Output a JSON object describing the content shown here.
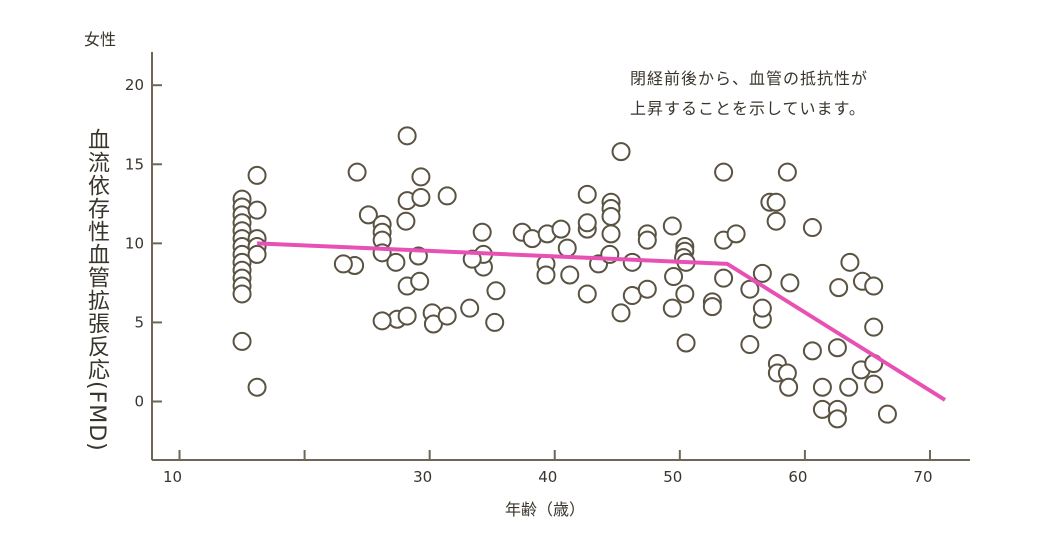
{
  "chart_data": {
    "type": "scatter",
    "group_label": "女性",
    "title": "",
    "xlabel": "年齢（歳）",
    "ylabel": "血流依存性血管拡張反応(FMD)",
    "xlim": [
      7.8,
      73.2
    ],
    "ylim": [
      -3.7,
      22.1
    ],
    "x_ticks": [
      10,
      20,
      30,
      40,
      50,
      60,
      70
    ],
    "x_tick_labels": [
      "10",
      "",
      "30",
      "40",
      "50",
      "60",
      "70"
    ],
    "y_ticks": [
      0,
      5,
      10,
      15,
      20
    ],
    "y_tick_labels": [
      "0",
      "5",
      "10",
      "15",
      "20"
    ],
    "grid": false,
    "annotation": [
      "閉経前後から、血管の抵抗性が",
      "上昇することを示しています。"
    ],
    "colors": {
      "axis": "#6e6656",
      "marker": "#5a5242",
      "trend": "#e851b4"
    },
    "trend_line": [
      [
        16.2,
        10.0
      ],
      [
        53.8,
        8.7
      ],
      [
        71.2,
        0.1
      ]
    ],
    "points": [
      [
        15.0,
        12.8
      ],
      [
        15.0,
        12.3
      ],
      [
        15.0,
        11.8
      ],
      [
        15.0,
        11.3
      ],
      [
        15.0,
        10.8
      ],
      [
        15.0,
        10.3
      ],
      [
        15.0,
        9.8
      ],
      [
        15.0,
        9.3
      ],
      [
        15.0,
        8.8
      ],
      [
        15.0,
        8.3
      ],
      [
        15.0,
        7.8
      ],
      [
        15.0,
        7.3
      ],
      [
        15.0,
        6.8
      ],
      [
        15.0,
        3.8
      ],
      [
        16.2,
        14.3
      ],
      [
        16.2,
        12.1
      ],
      [
        16.2,
        10.3
      ],
      [
        16.2,
        9.8
      ],
      [
        16.2,
        9.3
      ],
      [
        16.2,
        0.9
      ],
      [
        24.2,
        14.5
      ],
      [
        25.1,
        11.8
      ],
      [
        26.2,
        11.2
      ],
      [
        26.2,
        10.7
      ],
      [
        26.2,
        10.2
      ],
      [
        26.2,
        9.4
      ],
      [
        24.0,
        8.6
      ],
      [
        23.1,
        8.7
      ],
      [
        27.3,
        8.8
      ],
      [
        28.2,
        16.8
      ],
      [
        28.2,
        12.7
      ],
      [
        28.1,
        11.4
      ],
      [
        29.3,
        14.2
      ],
      [
        29.3,
        12.9
      ],
      [
        29.1,
        9.2
      ],
      [
        28.2,
        7.3
      ],
      [
        29.2,
        7.6
      ],
      [
        31.4,
        13.0
      ],
      [
        27.4,
        5.2
      ],
      [
        26.2,
        5.1
      ],
      [
        28.2,
        5.4
      ],
      [
        30.2,
        5.6
      ],
      [
        30.3,
        4.9
      ],
      [
        31.4,
        5.4
      ],
      [
        33.2,
        5.9
      ],
      [
        35.2,
        5.0
      ],
      [
        35.3,
        7.0
      ],
      [
        34.3,
        8.5
      ],
      [
        34.3,
        9.3
      ],
      [
        33.4,
        9.0
      ],
      [
        34.2,
        10.7
      ],
      [
        37.4,
        10.7
      ],
      [
        38.2,
        10.3
      ],
      [
        39.4,
        10.6
      ],
      [
        40.5,
        10.9
      ],
      [
        39.3,
        8.7
      ],
      [
        39.3,
        8.0
      ],
      [
        41.0,
        9.7
      ],
      [
        41.2,
        8.0
      ],
      [
        42.6,
        13.1
      ],
      [
        42.6,
        10.9
      ],
      [
        42.6,
        11.3
      ],
      [
        42.6,
        6.8
      ],
      [
        43.5,
        8.7
      ],
      [
        44.5,
        12.6
      ],
      [
        44.5,
        12.2
      ],
      [
        44.5,
        11.7
      ],
      [
        44.5,
        10.6
      ],
      [
        44.4,
        9.3
      ],
      [
        46.2,
        8.8
      ],
      [
        46.2,
        6.7
      ],
      [
        45.3,
        5.6
      ],
      [
        47.4,
        10.6
      ],
      [
        47.4,
        10.2
      ],
      [
        47.4,
        7.1
      ],
      [
        45.3,
        15.8
      ],
      [
        49.4,
        11.1
      ],
      [
        50.4,
        9.8
      ],
      [
        50.4,
        9.5
      ],
      [
        50.3,
        9.1
      ],
      [
        50.5,
        8.8
      ],
      [
        49.5,
        7.9
      ],
      [
        49.4,
        5.9
      ],
      [
        50.4,
        6.8
      ],
      [
        50.5,
        3.7
      ],
      [
        52.6,
        6.3
      ],
      [
        52.6,
        6.0
      ],
      [
        53.5,
        14.5
      ],
      [
        53.5,
        7.8
      ],
      [
        53.5,
        10.2
      ],
      [
        54.5,
        10.6
      ],
      [
        55.6,
        7.1
      ],
      [
        56.6,
        8.1
      ],
      [
        56.6,
        5.2
      ],
      [
        55.6,
        3.6
      ],
      [
        56.6,
        5.9
      ],
      [
        57.2,
        12.6
      ],
      [
        57.7,
        12.6
      ],
      [
        57.7,
        11.4
      ],
      [
        58.6,
        14.5
      ],
      [
        58.8,
        7.5
      ],
      [
        57.8,
        2.4
      ],
      [
        57.8,
        1.8
      ],
      [
        58.6,
        1.8
      ],
      [
        58.7,
        0.9
      ],
      [
        60.6,
        11.0
      ],
      [
        60.6,
        3.2
      ],
      [
        61.4,
        0.9
      ],
      [
        61.4,
        -0.5
      ],
      [
        62.6,
        -0.5
      ],
      [
        62.6,
        -1.1
      ],
      [
        63.6,
        8.8
      ],
      [
        62.7,
        7.2
      ],
      [
        62.6,
        3.4
      ],
      [
        63.5,
        0.9
      ],
      [
        64.5,
        2.0
      ],
      [
        64.6,
        7.6
      ],
      [
        65.5,
        7.3
      ],
      [
        65.5,
        4.7
      ],
      [
        65.5,
        2.4
      ],
      [
        65.5,
        1.1
      ],
      [
        66.6,
        -0.8
      ]
    ]
  }
}
